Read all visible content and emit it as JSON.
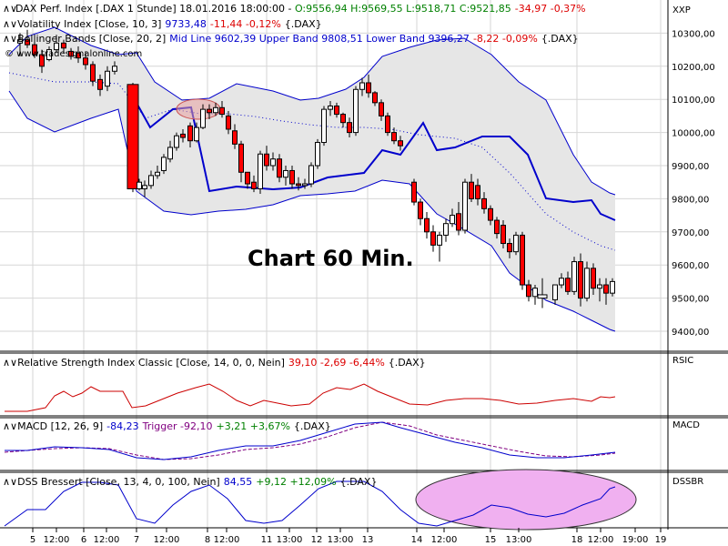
{
  "window": {
    "symbol_bar": "XXP"
  },
  "headers": {
    "price": {
      "prefix": "DAX Perf. Index [.DAX  1 Stunde] 18.01.2016 18:00:00 - ",
      "ohlc": "O:9556,94 H:9569,55 L:9518,71 C:9521,85",
      "change": "-34,97 -0,37%"
    },
    "vix": {
      "label": "Volatility Index [Close, 10, 3]",
      "value": "9733,48",
      "change": "-11,44 -0,12%",
      "suffix": "{.DAX}"
    },
    "bb": {
      "label": "Bollinger Bands [Close, 20, 2]",
      "value": "Mid Line 9602,39 Upper Band 9808,51 Lower Band 9396,27",
      "change": "-8,22 -0,09%",
      "suffix": "{.DAX}"
    },
    "watermark": "© www.tradesignalonline.com",
    "rsi": {
      "label": "Relative Strength Index Classic [Close, 14, 0, 0, Nein]",
      "value": "39,10 -2,69 -6,44%",
      "suffix": "{.DAX}"
    },
    "macd": {
      "label": "MACD [12, 26, 9]",
      "value": "-84,23",
      "trigger": "Trigger -92,10",
      "change": "+3,21 +3,67%",
      "suffix": "{.DAX}"
    },
    "dss": {
      "label": "DSS Bressert [Close, 13, 4, 0, 100, Nein]",
      "value": "84,55",
      "change": "+9,12 +12,09%",
      "suffix": "{.DAX}"
    }
  },
  "annotation": "Chart 60 Min.",
  "panel_labels": {
    "rsi": "RSIC",
    "macd": "MACD",
    "dss": "DSSBR"
  },
  "colors": {
    "up_candle": "#ffffff",
    "down_candle": "#ff0000",
    "bb_band": "#0000cc",
    "vix_line": "#0000cc",
    "rsi_line": "#cc0000",
    "macd_line": "#0000cc",
    "macd_trigger": "#800080",
    "dss_line": "#0000cc",
    "highlight": "#ee88ee",
    "oval": "#dd6666",
    "neg": "#dd0000",
    "pos": "#008000",
    "blue": "#0000cc",
    "purple": "#800080"
  },
  "chart_data": {
    "type": "candlestick",
    "y_ticks": [
      "10300,00",
      "10200,00",
      "10100,00",
      "10000,00",
      "9900,00",
      "9800,00",
      "9700,00",
      "9600,00",
      "9500,00",
      "9400,00"
    ],
    "y_tick_values": [
      10300,
      10200,
      10100,
      10000,
      9900,
      9800,
      9700,
      9600,
      9500,
      9400
    ],
    "ylim": [
      9300,
      10390
    ],
    "x_ticks": [
      {
        "label": "5",
        "x": 36
      },
      {
        "label": "12:00",
        "x": 62
      },
      {
        "label": "6",
        "x": 92
      },
      {
        "label": "12:00",
        "x": 117
      },
      {
        "label": "7",
        "x": 150
      },
      {
        "label": "12:00",
        "x": 183
      },
      {
        "label": "8",
        "x": 228
      },
      {
        "label": "12:00",
        "x": 249
      },
      {
        "label": "11",
        "x": 293
      },
      {
        "label": "13:00",
        "x": 318
      },
      {
        "label": "12",
        "x": 348
      },
      {
        "label": "13:00",
        "x": 374
      },
      {
        "label": "13",
        "x": 404
      },
      {
        "label": "14",
        "x": 458
      },
      {
        "label": "12:00",
        "x": 488
      },
      {
        "label": "15",
        "x": 539
      },
      {
        "label": "13:00",
        "x": 570
      },
      {
        "label": "18",
        "x": 634
      },
      {
        "label": "12:00",
        "x": 660
      },
      {
        "label": "19:00",
        "x": 698
      },
      {
        "label": "19",
        "x": 726
      }
    ],
    "candles": [
      [
        22,
        10270,
        10300,
        10230,
        10280
      ],
      [
        30,
        10280,
        10310,
        10255,
        10265
      ],
      [
        38,
        10265,
        10275,
        10225,
        10235
      ],
      [
        46,
        10235,
        10250,
        10180,
        10200
      ],
      [
        54,
        10220,
        10260,
        10215,
        10250
      ],
      [
        62,
        10250,
        10295,
        10240,
        10270
      ],
      [
        70,
        10270,
        10280,
        10240,
        10255
      ],
      [
        78,
        10245,
        10255,
        10220,
        10230
      ],
      [
        86,
        10240,
        10260,
        10210,
        10225
      ],
      [
        94,
        10225,
        10245,
        10190,
        10205
      ],
      [
        102,
        10205,
        10215,
        10140,
        10155
      ],
      [
        110,
        10160,
        10175,
        10110,
        10130
      ],
      [
        118,
        10140,
        10200,
        10125,
        10185
      ],
      [
        126,
        10185,
        10215,
        10175,
        10200
      ],
      [
        146,
        10145,
        10150,
        9820,
        9830
      ],
      [
        153,
        9830,
        9860,
        9825,
        9850
      ],
      [
        159,
        9830,
        9855,
        9805,
        9840
      ],
      [
        166,
        9840,
        9885,
        9830,
        9870
      ],
      [
        173,
        9870,
        9900,
        9860,
        9880
      ],
      [
        180,
        9885,
        9935,
        9875,
        9925
      ],
      [
        187,
        9920,
        9975,
        9910,
        9955
      ],
      [
        194,
        9955,
        10000,
        9945,
        9990
      ],
      [
        201,
        9995,
        10010,
        9970,
        9985
      ],
      [
        209,
        10020,
        10030,
        9955,
        9975
      ],
      [
        216,
        9975,
        10030,
        9970,
        10015
      ],
      [
        223,
        10015,
        10085,
        10010,
        10070
      ],
      [
        230,
        10070,
        10085,
        10040,
        10060
      ],
      [
        237,
        10060,
        10090,
        10050,
        10075
      ],
      [
        244,
        10075,
        10095,
        10045,
        10055
      ],
      [
        251,
        10050,
        10065,
        9995,
        10010
      ],
      [
        258,
        10005,
        10025,
        9950,
        9965
      ],
      [
        265,
        9965,
        9975,
        9850,
        9880
      ],
      [
        272,
        9880,
        9880,
        9830,
        9845
      ],
      [
        279,
        9850,
        9870,
        9820,
        9830
      ],
      [
        286,
        9830,
        9945,
        9815,
        9935
      ],
      [
        293,
        9935,
        9960,
        9885,
        9900
      ],
      [
        300,
        9900,
        9940,
        9885,
        9920
      ],
      [
        307,
        9920,
        9935,
        9850,
        9865
      ],
      [
        314,
        9865,
        9900,
        9840,
        9885
      ],
      [
        321,
        9885,
        9900,
        9830,
        9845
      ],
      [
        328,
        9845,
        9865,
        9825,
        9840
      ],
      [
        335,
        9840,
        9860,
        9830,
        9845
      ],
      [
        342,
        9845,
        9910,
        9835,
        9900
      ],
      [
        349,
        9900,
        9980,
        9890,
        9970
      ],
      [
        356,
        9970,
        10080,
        9960,
        10070
      ],
      [
        363,
        10070,
        10095,
        10050,
        10080
      ],
      [
        370,
        10080,
        10090,
        10045,
        10055
      ],
      [
        377,
        10055,
        10060,
        10015,
        10030
      ],
      [
        384,
        10030,
        10045,
        9985,
        10000
      ],
      [
        391,
        10000,
        10140,
        9990,
        10130
      ],
      [
        398,
        10130,
        10165,
        10110,
        10150
      ],
      [
        405,
        10150,
        10175,
        10105,
        10120
      ],
      [
        412,
        10120,
        10125,
        10080,
        10090
      ],
      [
        419,
        10090,
        10100,
        10035,
        10050
      ],
      [
        426,
        10050,
        10060,
        9990,
        10000
      ],
      [
        433,
        10000,
        10015,
        9965,
        9975
      ],
      [
        440,
        9975,
        9990,
        9945,
        9960
      ],
      [
        455,
        9850,
        9860,
        9780,
        9790
      ],
      [
        462,
        9790,
        9800,
        9720,
        9740
      ],
      [
        469,
        9740,
        9760,
        9680,
        9700
      ],
      [
        476,
        9700,
        9720,
        9640,
        9660
      ],
      [
        483,
        9660,
        9700,
        9610,
        9690
      ],
      [
        490,
        9690,
        9740,
        9670,
        9725
      ],
      [
        497,
        9725,
        9770,
        9715,
        9750
      ],
      [
        504,
        9755,
        9790,
        9690,
        9705
      ],
      [
        511,
        9705,
        9860,
        9695,
        9850
      ],
      [
        518,
        9850,
        9875,
        9790,
        9800
      ],
      [
        525,
        9840,
        9860,
        9780,
        9800
      ],
      [
        532,
        9800,
        9820,
        9755,
        9770
      ],
      [
        539,
        9770,
        9780,
        9720,
        9735
      ],
      [
        546,
        9735,
        9745,
        9680,
        9695
      ],
      [
        553,
        9720,
        9735,
        9650,
        9665
      ],
      [
        560,
        9665,
        9680,
        9620,
        9640
      ],
      [
        567,
        9640,
        9700,
        9630,
        9690
      ],
      [
        574,
        9690,
        9700,
        9525,
        9540
      ],
      [
        581,
        9540,
        9555,
        9490,
        9505
      ],
      [
        588,
        9505,
        9540,
        9480,
        9530
      ],
      [
        596,
        9500,
        9560,
        9470,
        9510
      ],
      [
        610,
        9495,
        9540,
        9480,
        9540
      ],
      [
        617,
        9540,
        9575,
        9530,
        9560
      ],
      [
        624,
        9560,
        9580,
        9510,
        9520
      ],
      [
        631,
        9520,
        9625,
        9510,
        9610
      ],
      [
        638,
        9610,
        9635,
        9475,
        9500
      ],
      [
        645,
        9500,
        9610,
        9490,
        9590
      ],
      [
        652,
        9590,
        9605,
        9510,
        9530
      ],
      [
        659,
        9530,
        9560,
        9490,
        9540
      ],
      [
        666,
        9540,
        9560,
        9480,
        9515
      ],
      [
        673,
        9515,
        9560,
        9505,
        9550
      ]
    ]
  }
}
